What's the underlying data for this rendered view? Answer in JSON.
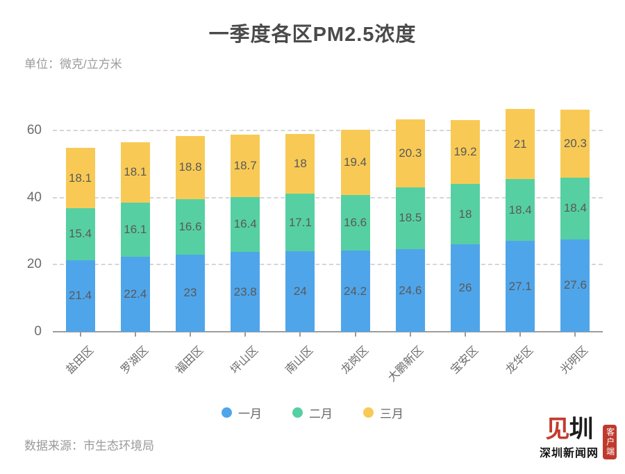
{
  "header": {
    "title": "一季度各区PM2.5浓度",
    "unit": "单位：微克/立方米"
  },
  "footer": {
    "source": "数据来源：市生态环境局",
    "logo": {
      "mark_red": "见",
      "mark_black": "圳",
      "name": "深圳新闻网",
      "seal": "客户端"
    }
  },
  "colors": {
    "january_blue": "#4FA5EA",
    "february_green": "#56D0A2",
    "march_yellow": "#F8CA55",
    "grid": "#d6d6d6",
    "axis": "#9b9b9b",
    "value_label": "#595959",
    "muted_text": "#9a9a9a",
    "title_text": "#4a4a4a",
    "logo_red": "#c23b2e"
  },
  "chart_data": {
    "type": "bar",
    "stacked": true,
    "title": "一季度各区PM2.5浓度",
    "xlabel": "",
    "ylabel": "微克/立方米",
    "categories": [
      "盐田区",
      "罗湖区",
      "福田区",
      "坪山区",
      "南山区",
      "龙岗区",
      "大鹏新区",
      "宝安区",
      "龙华区",
      "光明区"
    ],
    "series": [
      {
        "name": "一月",
        "color": "#4FA5EA",
        "values": [
          21.4,
          22.4,
          23,
          23.8,
          24,
          24.2,
          24.6,
          26,
          27.1,
          27.6
        ]
      },
      {
        "name": "二月",
        "color": "#56D0A2",
        "values": [
          15.4,
          16.1,
          16.6,
          16.4,
          17.1,
          16.6,
          18.5,
          18,
          18.4,
          18.4
        ]
      },
      {
        "name": "三月",
        "color": "#F8CA55",
        "values": [
          18.1,
          18.1,
          18.8,
          18.7,
          18,
          19.4,
          20.3,
          19.2,
          21,
          20.3
        ]
      }
    ],
    "yticks": [
      0,
      20,
      40,
      60
    ],
    "ylim": [
      0,
      70
    ],
    "grid": "horizontal-dashed",
    "legend_position": "bottom",
    "xlabel_rotation": 45
  }
}
